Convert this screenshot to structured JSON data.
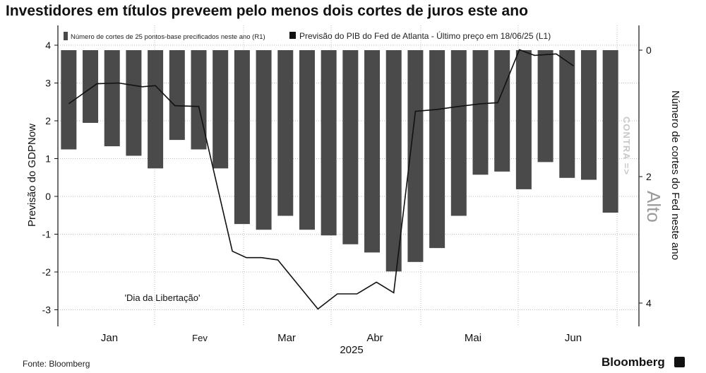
{
  "chart_data": {
    "type": "bar+line",
    "title": "Investidores em títulos preveem pelo menos dois cortes de juros este ano",
    "left_axis": {
      "label": "Previsão do GDPNow",
      "ticks": [
        "4",
        "3",
        "2",
        "1",
        "0",
        "-1",
        "-2",
        "-3"
      ],
      "range": [
        -3.3,
        4
      ]
    },
    "right_axis": {
      "label": "Número de cortes do Fed neste ano",
      "ticks": [
        "0",
        "2",
        "4"
      ],
      "range": [
        0,
        4.35
      ],
      "inverted": true
    },
    "x_axis": {
      "months": [
        "Jan",
        "Fev",
        "Mar",
        "Abr",
        "Mai",
        "Jun"
      ],
      "year": "2025"
    },
    "legend": [
      {
        "label": "Número de cortes de 25 pontos-base precificados neste ano (R1)",
        "color": "#4a4a4a"
      },
      {
        "label": "Previsão do PIB do Fed de Atlanta - Último preço em 18/06/25 (L1)",
        "color": "#111111"
      }
    ],
    "legend_placement": "top",
    "grid": true,
    "series_bars": {
      "name": "Número de cortes de 25 pontos-base precificados neste ano (R1)",
      "axis": "right",
      "values": [
        1.57,
        1.15,
        1.52,
        1.67,
        1.87,
        1.42,
        1.57,
        1.87,
        2.75,
        2.84,
        2.62,
        2.84,
        2.93,
        3.07,
        3.2,
        3.5,
        3.35,
        3.13,
        2.62,
        1.97,
        1.92,
        2.2,
        1.77,
        2.02,
        2.05,
        2.57
      ]
    },
    "series_line": {
      "name": "Previsão do PIB do Fed de Atlanta - Último preço em 18/06/25 (L1)",
      "axis": "left",
      "points": [
        [
          0,
          2.45
        ],
        [
          1.3,
          2.98
        ],
        [
          2.3,
          3.0
        ],
        [
          3.4,
          2.9
        ],
        [
          4.0,
          2.93
        ],
        [
          4.9,
          2.4
        ],
        [
          6.0,
          2.38
        ],
        [
          7.55,
          -1.45
        ],
        [
          8.2,
          -1.62
        ],
        [
          8.9,
          -1.62
        ],
        [
          9.65,
          -1.68
        ],
        [
          11.5,
          -2.98
        ],
        [
          12.4,
          -2.58
        ],
        [
          13.3,
          -2.58
        ],
        [
          14.2,
          -2.27
        ],
        [
          15.0,
          -2.55
        ],
        [
          16.0,
          2.25
        ],
        [
          17.0,
          2.3
        ],
        [
          18.0,
          2.38
        ],
        [
          19.0,
          2.45
        ],
        [
          19.8,
          2.48
        ],
        [
          20.8,
          3.88
        ],
        [
          21.5,
          3.73
        ],
        [
          22.5,
          3.77
        ],
        [
          23.3,
          3.45
        ]
      ]
    },
    "annotations": [
      "'Dia da Libertação'"
    ]
  },
  "footer": {
    "source": "Fonte: Bloomberg",
    "brand": "Bloomberg"
  },
  "watermark": {
    "text": "CONTRA =>",
    "brand": "Alto"
  }
}
